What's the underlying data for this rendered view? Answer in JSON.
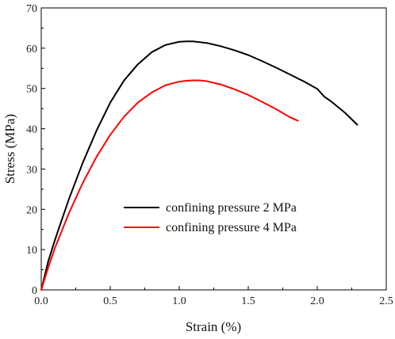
{
  "chart_data": {
    "type": "line",
    "title": "",
    "xlabel": "Strain (%)",
    "ylabel": "Stress (MPa)",
    "xlim": [
      0.0,
      2.5
    ],
    "ylim": [
      0,
      70
    ],
    "xticks": [
      "0.0",
      "0.5",
      "1.0",
      "1.5",
      "2.0",
      "2.5"
    ],
    "yticks": [
      "0",
      "10",
      "20",
      "30",
      "40",
      "50",
      "60",
      "70"
    ],
    "grid": false,
    "legend_position": "center-right",
    "series": [
      {
        "name": "confining pressure 2 MPa",
        "color": "#000000",
        "x": [
          0.0,
          0.05,
          0.1,
          0.2,
          0.3,
          0.4,
          0.5,
          0.6,
          0.7,
          0.8,
          0.9,
          1.0,
          1.05,
          1.1,
          1.2,
          1.3,
          1.4,
          1.5,
          1.6,
          1.7,
          1.8,
          1.9,
          2.0,
          2.05,
          2.1,
          2.2,
          2.29
        ],
        "y": [
          0,
          7,
          12.5,
          22.5,
          31.5,
          39.5,
          46.5,
          52,
          56,
          59,
          60.8,
          61.6,
          61.7,
          61.7,
          61.3,
          60.5,
          59.5,
          58.3,
          56.8,
          55.2,
          53.5,
          51.8,
          49.9,
          48,
          46.8,
          44,
          41
        ]
      },
      {
        "name": "confining pressure 4 MPa",
        "color": "#ff0000",
        "x": [
          0.0,
          0.05,
          0.1,
          0.2,
          0.3,
          0.4,
          0.5,
          0.6,
          0.7,
          0.8,
          0.9,
          1.0,
          1.05,
          1.1,
          1.15,
          1.2,
          1.3,
          1.4,
          1.5,
          1.6,
          1.7,
          1.8,
          1.86
        ],
        "y": [
          0,
          5.5,
          10.5,
          19,
          26.5,
          33,
          38.5,
          43,
          46.5,
          49,
          50.8,
          51.7,
          51.9,
          52,
          52,
          51.8,
          51,
          49.8,
          48.4,
          46.7,
          44.9,
          42.9,
          42
        ]
      }
    ]
  }
}
